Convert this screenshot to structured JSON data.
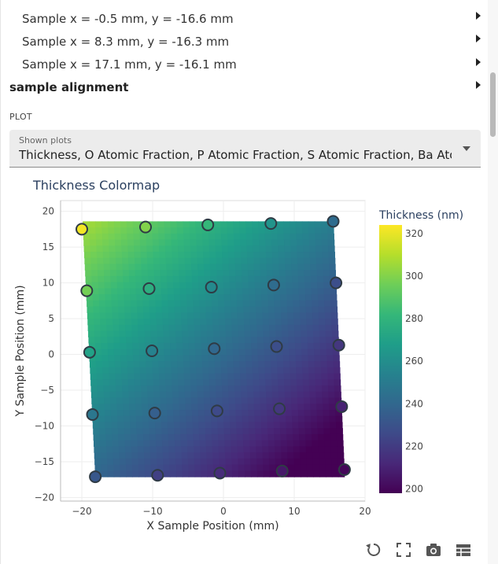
{
  "samples": [
    {
      "label": "Sample x = -0.5 mm, y = -16.6 mm"
    },
    {
      "label": "Sample x = 8.3 mm, y = -16.3 mm"
    },
    {
      "label": "Sample x = 17.1 mm, y = -16.1 mm"
    }
  ],
  "section": {
    "title": "sample alignment"
  },
  "plot_section": {
    "label": "PLOT"
  },
  "shown_plots": {
    "caption": "Shown plots",
    "value": "Thickness, O Atomic Fraction, P Atomic Fraction, S Atomic Fraction, Ba Atomic Fr..."
  },
  "toolbar": {
    "icons": [
      "reset-axes-icon",
      "autoscale-icon",
      "camera-icon",
      "table-icon"
    ]
  },
  "chart_data": {
    "type": "heatmap",
    "title": "Thickness Colormap",
    "xlabel": "X Sample Position (mm)",
    "ylabel": "Y Sample Position (mm)",
    "xlim": [
      -23,
      20
    ],
    "ylim": [
      -20.5,
      21.5
    ],
    "xticks": [
      -20,
      -10,
      0,
      10,
      20
    ],
    "yticks": [
      -20,
      -15,
      -10,
      -5,
      0,
      5,
      10,
      15,
      20
    ],
    "grid": true,
    "colorbar": {
      "title": "Thickness (nm)",
      "range": [
        198,
        324
      ],
      "ticks": [
        200,
        220,
        240,
        260,
        280,
        300,
        320
      ],
      "colorscale": "viridis"
    },
    "points": [
      {
        "x": -20.0,
        "y": 17.5,
        "value": 322
      },
      {
        "x": -11.0,
        "y": 17.8,
        "value": 300
      },
      {
        "x": -2.2,
        "y": 18.1,
        "value": 282
      },
      {
        "x": 6.7,
        "y": 18.3,
        "value": 263
      },
      {
        "x": 15.5,
        "y": 18.6,
        "value": 242
      },
      {
        "x": -19.3,
        "y": 8.9,
        "value": 297
      },
      {
        "x": -10.5,
        "y": 9.2,
        "value": 277
      },
      {
        "x": -1.7,
        "y": 9.4,
        "value": 258
      },
      {
        "x": 7.1,
        "y": 9.7,
        "value": 242
      },
      {
        "x": 15.9,
        "y": 10.0,
        "value": 228
      },
      {
        "x": -18.9,
        "y": 0.3,
        "value": 270
      },
      {
        "x": -10.1,
        "y": 0.5,
        "value": 254
      },
      {
        "x": -1.3,
        "y": 0.8,
        "value": 240
      },
      {
        "x": 7.5,
        "y": 1.1,
        "value": 228
      },
      {
        "x": 16.3,
        "y": 1.3,
        "value": 218
      },
      {
        "x": -18.5,
        "y": -8.4,
        "value": 248
      },
      {
        "x": -9.7,
        "y": -8.2,
        "value": 236
      },
      {
        "x": -0.9,
        "y": -7.9,
        "value": 226
      },
      {
        "x": 7.9,
        "y": -7.6,
        "value": 218
      },
      {
        "x": 16.7,
        "y": -7.3,
        "value": 210
      },
      {
        "x": -18.1,
        "y": -17.1,
        "value": 232
      },
      {
        "x": -9.3,
        "y": -16.9,
        "value": 222
      },
      {
        "x": -0.5,
        "y": -16.6,
        "value": 214
      },
      {
        "x": 8.3,
        "y": -16.3,
        "value": 206
      },
      {
        "x": 17.1,
        "y": -16.1,
        "value": 200
      }
    ]
  }
}
